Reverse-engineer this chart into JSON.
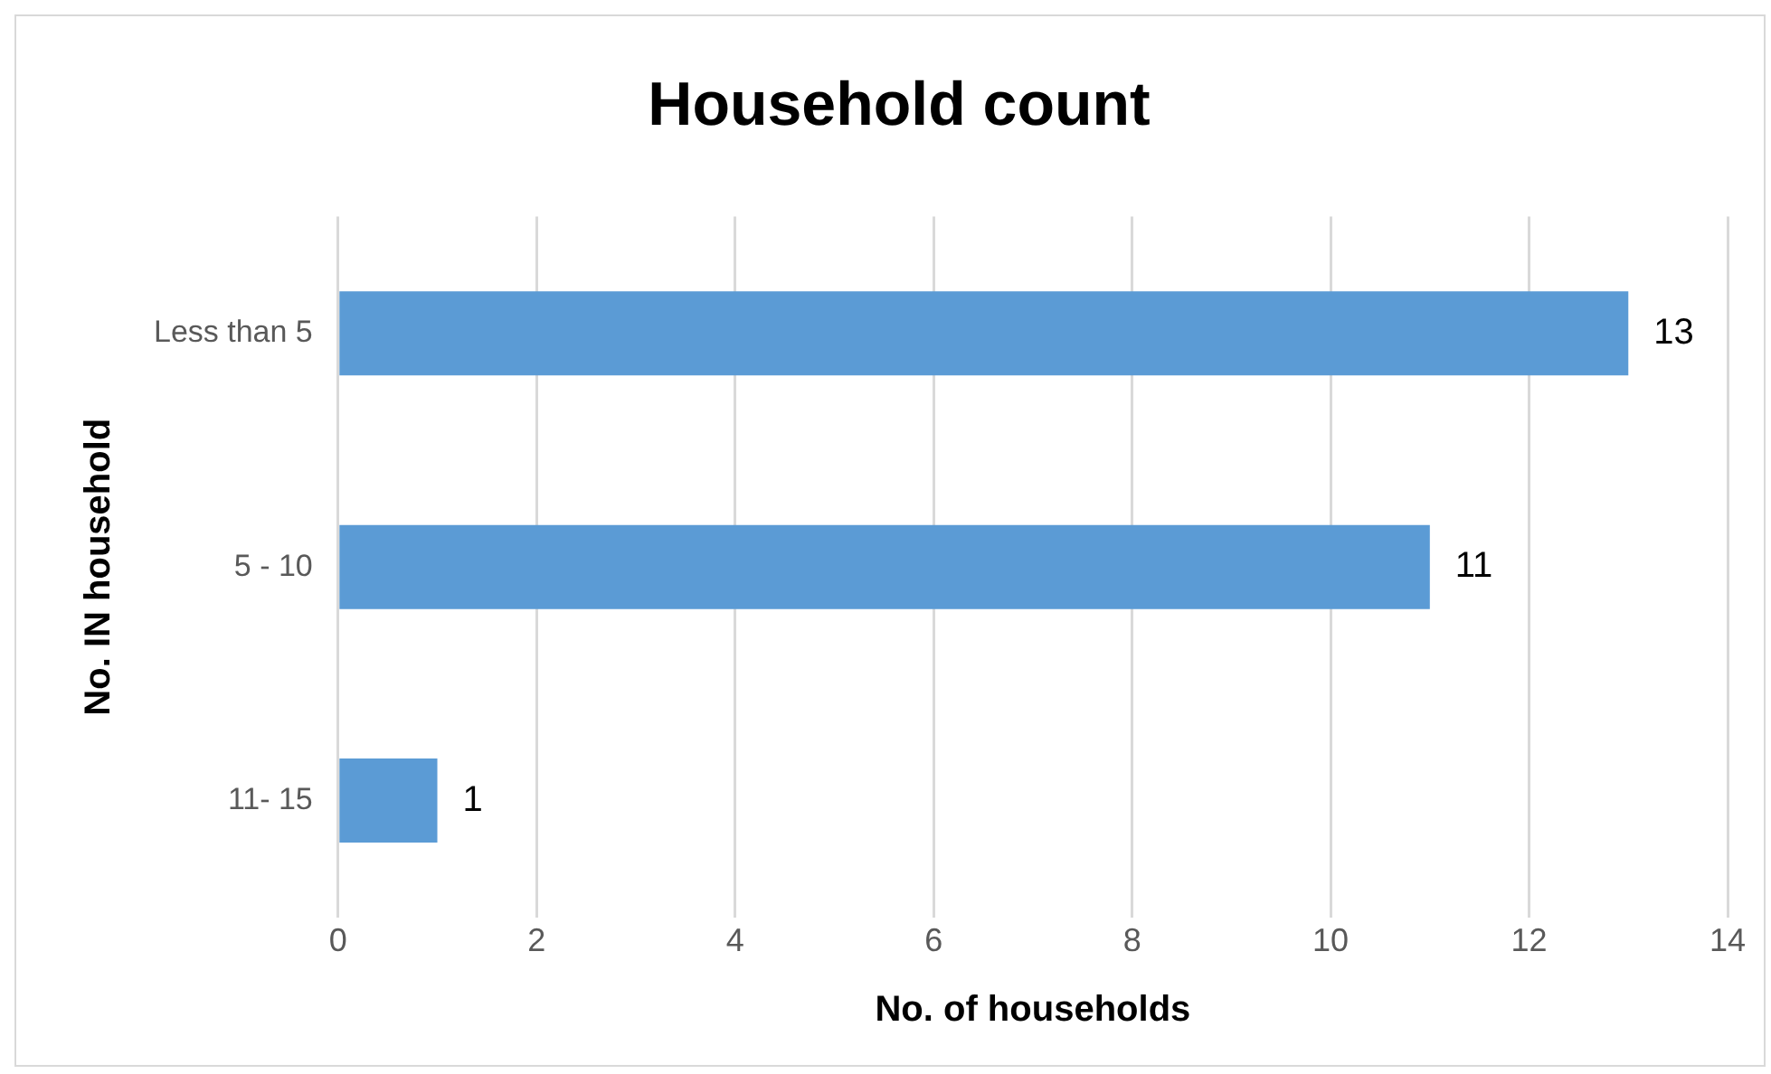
{
  "chart_data": {
    "type": "bar",
    "orientation": "horizontal",
    "title": "Household count",
    "xlabel": "No. of households",
    "ylabel": "No. IN household",
    "categories": [
      "Less than 5",
      "5 - 10",
      "11- 15"
    ],
    "values": [
      13,
      11,
      1
    ],
    "color": "#5b9bd5",
    "xlim": [
      0,
      14
    ],
    "xticks": [
      0,
      2,
      4,
      6,
      8,
      10,
      12,
      14
    ],
    "grid": "x",
    "legend": false,
    "data_labels": true
  }
}
